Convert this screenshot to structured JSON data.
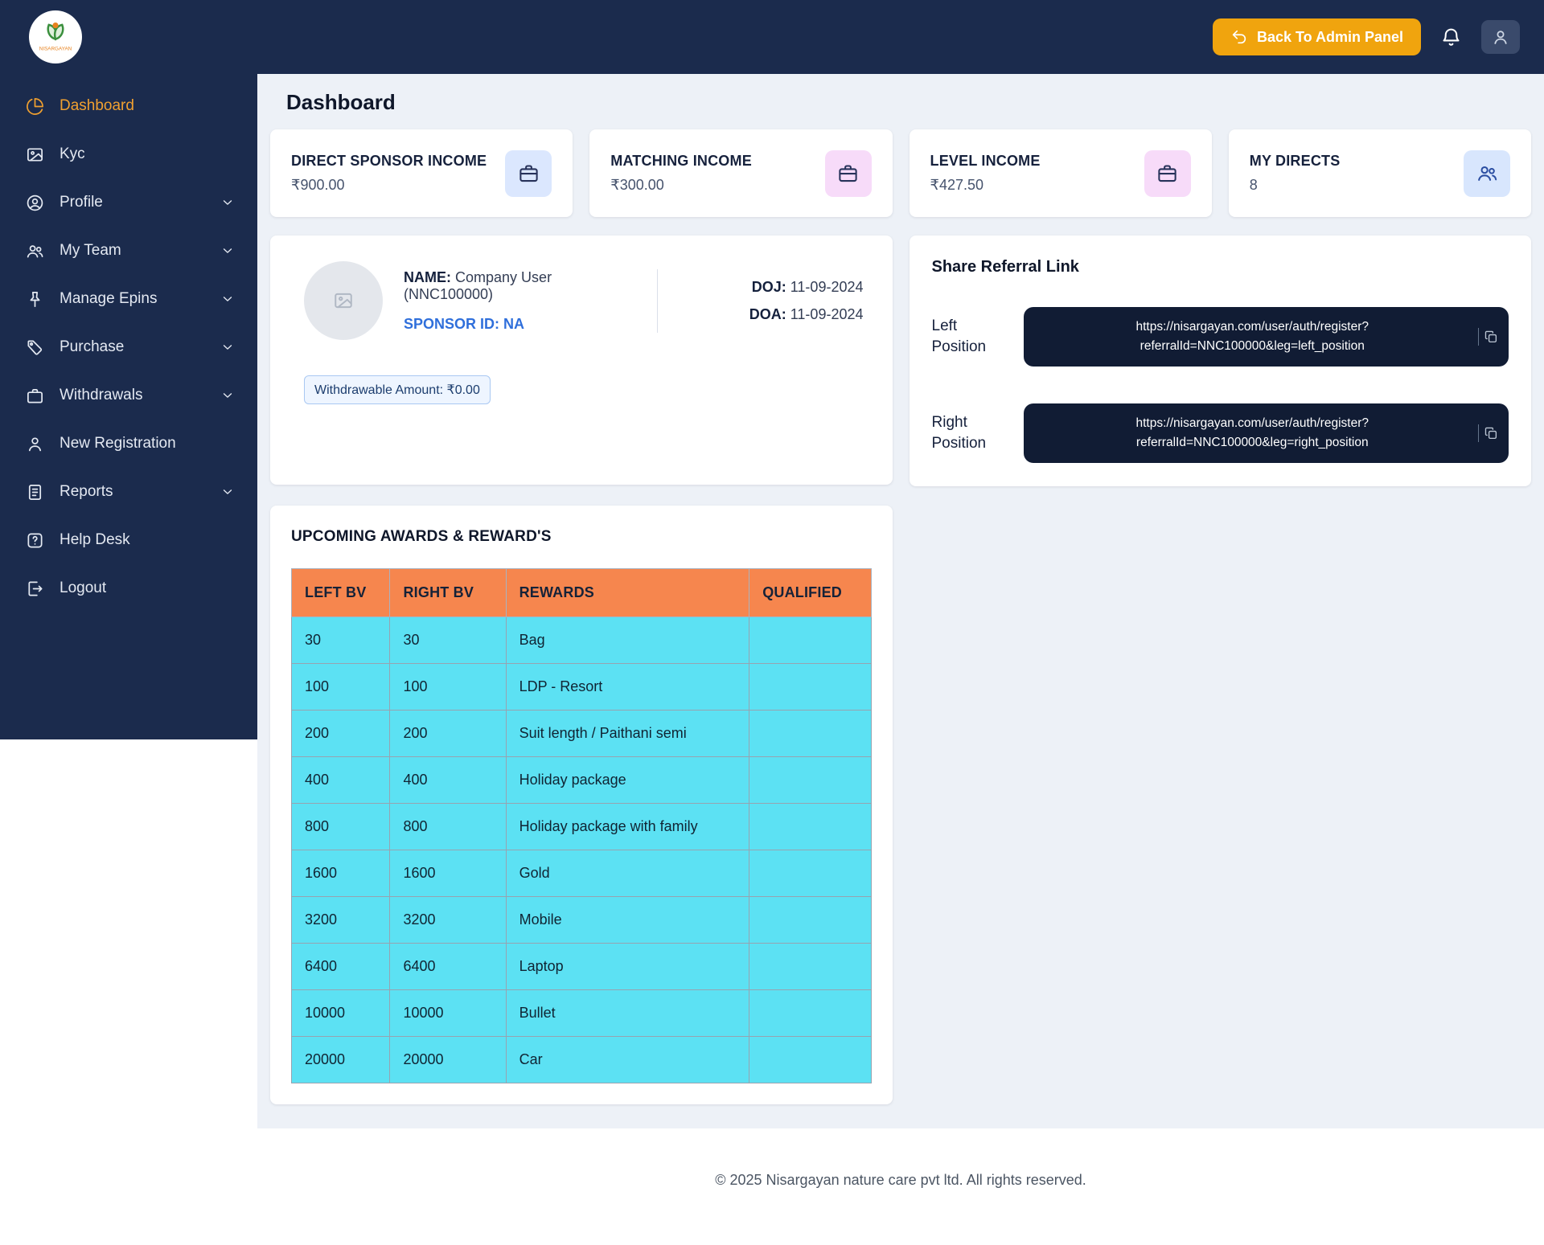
{
  "brand": {
    "name": "NISARGAYAN"
  },
  "theme": {
    "navy": "#1b2b4d",
    "accent_orange": "#f0a40e",
    "sidebar_active": "#f0a030",
    "table_header": "#f6864e",
    "table_row": "#5ce1f3",
    "link_blue": "#2f6fdb"
  },
  "topbar": {
    "back_button_label": "Back To Admin Panel"
  },
  "sidebar": {
    "items": [
      {
        "label": "Dashboard",
        "icon": "dashboard",
        "active": true,
        "chevron": false
      },
      {
        "label": "Kyc",
        "icon": "kyc",
        "active": false,
        "chevron": false
      },
      {
        "label": "Profile",
        "icon": "profile",
        "active": false,
        "chevron": true
      },
      {
        "label": "My Team",
        "icon": "team",
        "active": false,
        "chevron": true
      },
      {
        "label": "Manage Epins",
        "icon": "epins",
        "active": false,
        "chevron": true
      },
      {
        "label": "Purchase",
        "icon": "purchase",
        "active": false,
        "chevron": true
      },
      {
        "label": "Withdrawals",
        "icon": "withdrawals",
        "active": false,
        "chevron": true
      },
      {
        "label": "New Registration",
        "icon": "registration",
        "active": false,
        "chevron": false
      },
      {
        "label": "Reports",
        "icon": "reports",
        "active": false,
        "chevron": true
      },
      {
        "label": "Help Desk",
        "icon": "help",
        "active": false,
        "chevron": false
      },
      {
        "label": "Logout",
        "icon": "logout",
        "active": false,
        "chevron": false
      }
    ]
  },
  "page": {
    "title": "Dashboard"
  },
  "stats": [
    {
      "label": "DIRECT SPONSOR INCOME",
      "value": "₹900.00",
      "icon": "briefcase",
      "icon_bg": "#dbe7fe",
      "icon_color": "#27325a"
    },
    {
      "label": "MATCHING INCOME",
      "value": "₹300.00",
      "icon": "briefcase",
      "icon_bg": "#f7dbf9",
      "icon_color": "#27325a"
    },
    {
      "label": "LEVEL INCOME",
      "value": "₹427.50",
      "icon": "briefcase",
      "icon_bg": "#f7dbf9",
      "icon_color": "#27325a"
    },
    {
      "label": "MY DIRECTS",
      "value": "8",
      "icon": "users",
      "icon_bg": "#d8e6fd",
      "icon_color": "#2b4ea2"
    }
  ],
  "profile_card": {
    "name_label": "NAME:",
    "name_value": "Company User (NNC100000)",
    "sponsor_label": "SPONSOR ID:",
    "sponsor_value": "NA",
    "doj_label": "DOJ:",
    "doj_value": "11-09-2024",
    "doa_label": "DOA:",
    "doa_value": "11-09-2024",
    "withdrawable": "Withdrawable Amount: ₹0.00"
  },
  "referral": {
    "title": "Share Referral Link",
    "left_label": "Left Position",
    "left_url": "https://nisargayan.com/user/auth/register?referralId=NNC100000&leg=left_position",
    "right_label": "Right Position",
    "right_url": "https://nisargayan.com/user/auth/register?referralId=NNC100000&leg=right_position"
  },
  "awards": {
    "title": "UPCOMING AWARDS & REWARD'S",
    "headers": [
      "LEFT BV",
      "RIGHT BV",
      "REWARDS",
      "QUALIFIED"
    ],
    "rows": [
      [
        "30",
        "30",
        "Bag",
        ""
      ],
      [
        "100",
        "100",
        "LDP - Resort",
        ""
      ],
      [
        "200",
        "200",
        "Suit length / Paithani semi",
        ""
      ],
      [
        "400",
        "400",
        "Holiday package",
        ""
      ],
      [
        "800",
        "800",
        "Holiday package with family",
        ""
      ],
      [
        "1600",
        "1600",
        "Gold",
        ""
      ],
      [
        "3200",
        "3200",
        "Mobile",
        ""
      ],
      [
        "6400",
        "6400",
        "Laptop",
        ""
      ],
      [
        "10000",
        "10000",
        "Bullet",
        ""
      ],
      [
        "20000",
        "20000",
        "Car",
        ""
      ]
    ]
  },
  "footer": {
    "text": "© 2025 Nisargayan nature care pvt ltd. All rights reserved."
  }
}
